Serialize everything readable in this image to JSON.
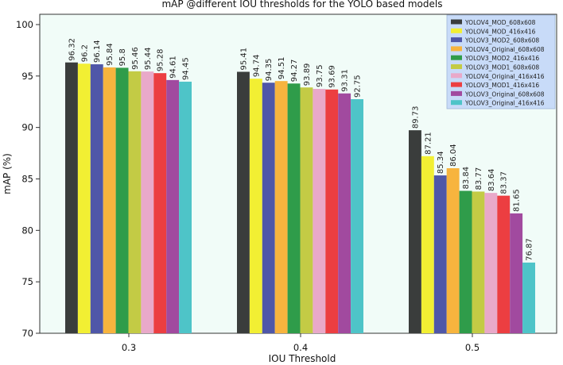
{
  "chart_data": {
    "type": "bar",
    "title": "mAP @different IOU thresholds for the YOLO based models",
    "xlabel": "IOU Threshold",
    "ylabel": "mAP (%)",
    "categories": [
      "0.3",
      "0.4",
      "0.5"
    ],
    "ylim": [
      70,
      101
    ],
    "yticks": [
      70,
      75,
      80,
      85,
      90,
      95,
      100
    ],
    "legend_position": "top-right",
    "series": [
      {
        "name": "YOLOV4_MOD_608x608",
        "color": "#3a3d3c",
        "values": [
          96.32,
          95.41,
          89.73
        ],
        "labels": [
          "96.32",
          "95.41",
          "89.73"
        ]
      },
      {
        "name": "YOLOV4_MOD_416x416",
        "color": "#f2ef33",
        "values": [
          96.2,
          94.74,
          87.21
        ],
        "labels": [
          "96.2",
          "94.74",
          "87.21"
        ]
      },
      {
        "name": "YOLOV3_MOD2_608x608",
        "color": "#4f57a8",
        "values": [
          96.14,
          94.35,
          85.34
        ],
        "labels": [
          "96.14",
          "94.35",
          "85.34"
        ]
      },
      {
        "name": "YOLOV4_Original_608x608",
        "color": "#f7b43e",
        "values": [
          95.84,
          94.51,
          86.04
        ],
        "labels": [
          "95.84",
          "94.51",
          "86.04"
        ]
      },
      {
        "name": "YOLOV3_MOD2_416x416",
        "color": "#2f9c4a",
        "values": [
          95.8,
          94.27,
          83.84
        ],
        "labels": [
          "95.8",
          "94.27",
          "83.84"
        ]
      },
      {
        "name": "YOLOV3_MOD1_608x608",
        "color": "#c3cb45",
        "values": [
          95.46,
          93.89,
          83.77
        ],
        "labels": [
          "95.46",
          "93.89",
          "83.77"
        ]
      },
      {
        "name": "YOLOV4_Original_416x416",
        "color": "#e9a9c9",
        "values": [
          95.44,
          93.75,
          83.64
        ],
        "labels": [
          "95.44",
          "93.75",
          "83.64"
        ]
      },
      {
        "name": "YOLOV3_MOD1_416x416",
        "color": "#ec3e41",
        "values": [
          95.28,
          93.69,
          83.37
        ],
        "labels": [
          "95.28",
          "93.69",
          "83.37"
        ]
      },
      {
        "name": "YOLOV3_Original_608x608",
        "color": "#a14a9f",
        "values": [
          94.61,
          93.31,
          81.65
        ],
        "labels": [
          "94.61",
          "93.31",
          "81.65"
        ]
      },
      {
        "name": "YOLOV3_Original_416x416",
        "color": "#4ec4c8",
        "values": [
          94.45,
          92.75,
          76.87
        ],
        "labels": [
          "94.45",
          "92.75",
          "76.87"
        ]
      }
    ]
  }
}
